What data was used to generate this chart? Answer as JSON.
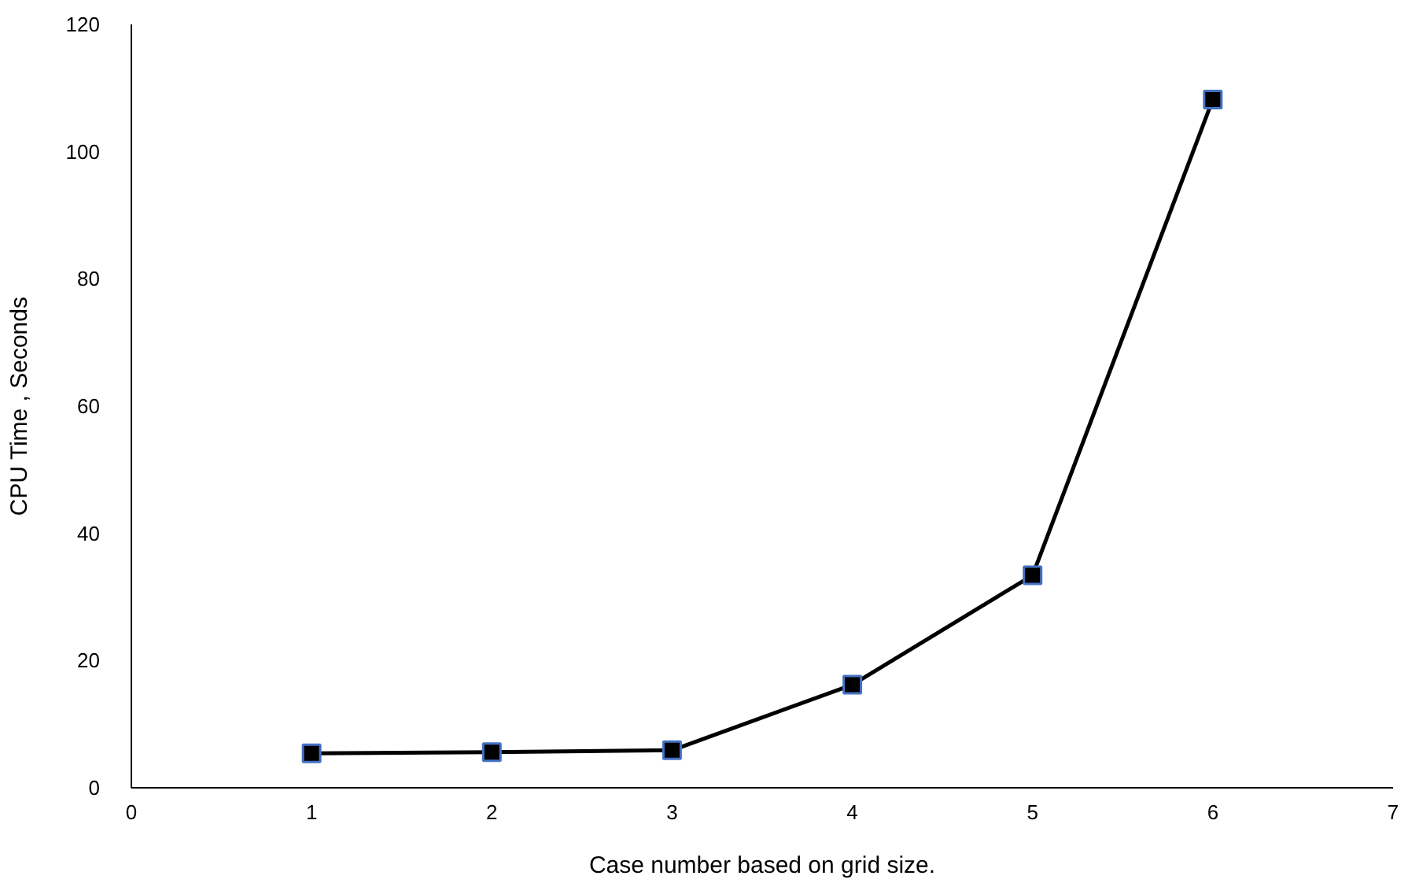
{
  "chart_data": {
    "type": "line",
    "xlabel": "Case number based on grid size.",
    "ylabel": "CPU Time , Seconds",
    "x": [
      1,
      2,
      3,
      4,
      5,
      6
    ],
    "series": [
      {
        "color": "#000000",
        "values": [
          5.4,
          5.6,
          5.9,
          16.2,
          33.4,
          108.2
        ]
      }
    ],
    "xlim": [
      0,
      7
    ],
    "xticks": [
      0,
      1,
      2,
      3,
      4,
      5,
      6,
      7
    ],
    "ylim": [
      0,
      120
    ],
    "yticks": [
      0,
      20,
      40,
      60,
      80,
      100,
      120
    ],
    "grid": false,
    "marker": "square",
    "line_style": "solid"
  }
}
